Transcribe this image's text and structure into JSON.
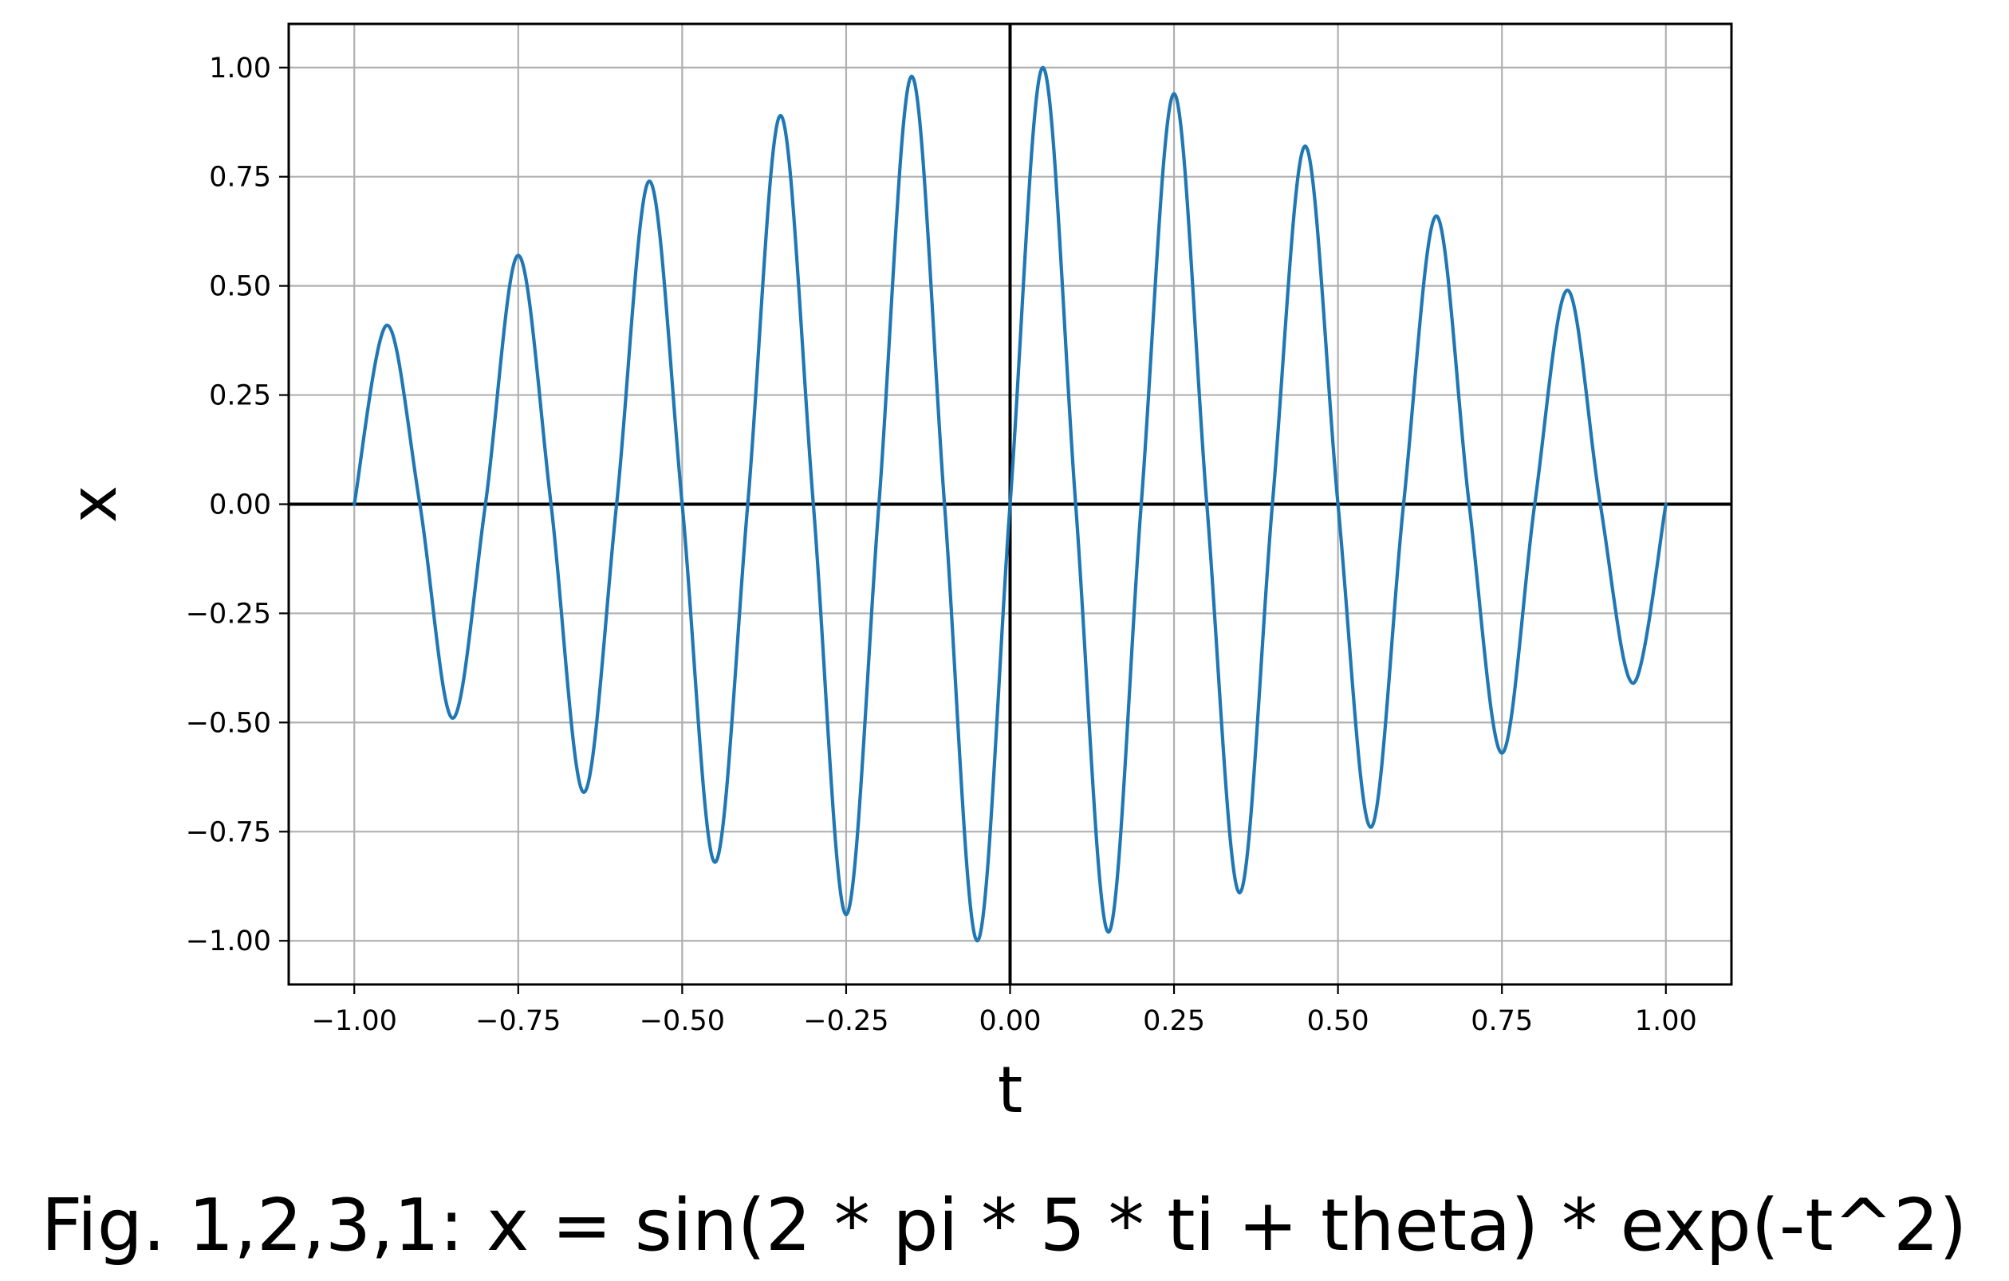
{
  "chart_data": {
    "type": "line",
    "title": "",
    "xlabel": "t",
    "ylabel": "x",
    "caption": "Fig. 1,2,3,1: x = sin(2 * pi * 5 * ti + theta) * exp(-t^2)",
    "xlim": [
      -1.1,
      1.1
    ],
    "ylim": [
      -1.1,
      1.1
    ],
    "x_ticks": [
      -1.0,
      -0.75,
      -0.5,
      -0.25,
      0.0,
      0.25,
      0.5,
      0.75,
      1.0
    ],
    "x_tick_labels": [
      "−1.00",
      "−0.75",
      "−0.50",
      "−0.25",
      "0.00",
      "0.25",
      "0.50",
      "0.75",
      "1.00"
    ],
    "y_ticks": [
      -1.0,
      -0.75,
      -0.5,
      -0.25,
      0.0,
      0.25,
      0.5,
      0.75,
      1.0
    ],
    "y_tick_labels": [
      "−1.00",
      "−0.75",
      "−0.50",
      "−0.25",
      "0.00",
      "0.25",
      "0.50",
      "0.75",
      "1.00"
    ],
    "grid": true,
    "zero_lines": true,
    "series": [
      {
        "color": "#1f77b4",
        "x": [
          -1.0,
          -0.95,
          -0.9,
          -0.85,
          -0.8,
          -0.75,
          -0.7,
          -0.65,
          -0.6,
          -0.55,
          -0.5,
          -0.45,
          -0.4,
          -0.35,
          -0.3,
          -0.25,
          -0.2,
          -0.15,
          -0.1,
          -0.05,
          0.0,
          0.05,
          0.1,
          0.15,
          0.2,
          0.25,
          0.3,
          0.35,
          0.4,
          0.45,
          0.5,
          0.55,
          0.6,
          0.65,
          0.7,
          0.75,
          0.8,
          0.85,
          0.9,
          0.95,
          1.0
        ],
        "y": [
          0.0,
          0.41,
          0.0,
          -0.49,
          0.0,
          0.57,
          0.0,
          -0.66,
          0.0,
          0.74,
          0.0,
          -0.82,
          0.0,
          0.89,
          0.0,
          -0.94,
          0.0,
          0.98,
          0.0,
          -1.0,
          0.0,
          1.0,
          0.0,
          -0.98,
          0.0,
          0.94,
          0.0,
          -0.89,
          0.0,
          0.82,
          0.0,
          -0.74,
          0.0,
          0.66,
          0.0,
          -0.57,
          0.0,
          0.49,
          0.0,
          -0.41,
          0.0
        ]
      }
    ]
  }
}
